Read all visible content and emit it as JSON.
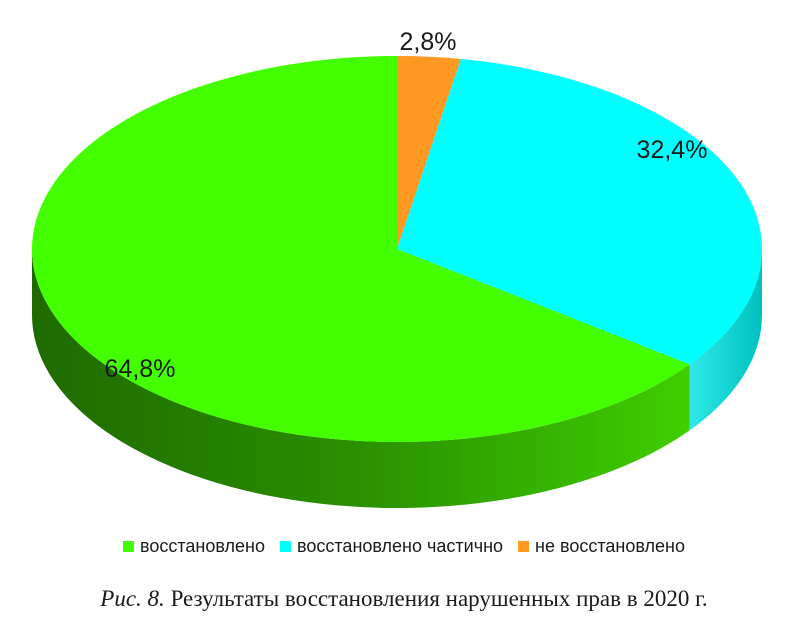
{
  "chart_data": {
    "type": "pie",
    "style": "3d",
    "title": "",
    "categories": [
      "восстановлено",
      "восстановлено частично",
      "не восстановлено"
    ],
    "values": [
      64.8,
      32.4,
      2.8
    ],
    "labels": [
      "64,8%",
      "32,4%",
      "2,8%"
    ],
    "colors": [
      "#44ff00",
      "#00ffff",
      "#ff9921"
    ],
    "side_colors": [
      "#2e9e00",
      "#00c8c8",
      "#cc7018"
    ],
    "legend_position": "bottom"
  },
  "legend": {
    "items": [
      {
        "label": "восстановлено",
        "color": "#44ff00"
      },
      {
        "label": "восстановлено частично",
        "color": "#00ffff"
      },
      {
        "label": "не восстановлено",
        "color": "#ff9921"
      }
    ]
  },
  "caption": {
    "prefix": "Рис. 8.",
    "text": " Результаты восстановления нарушенных прав в 2020 г."
  }
}
